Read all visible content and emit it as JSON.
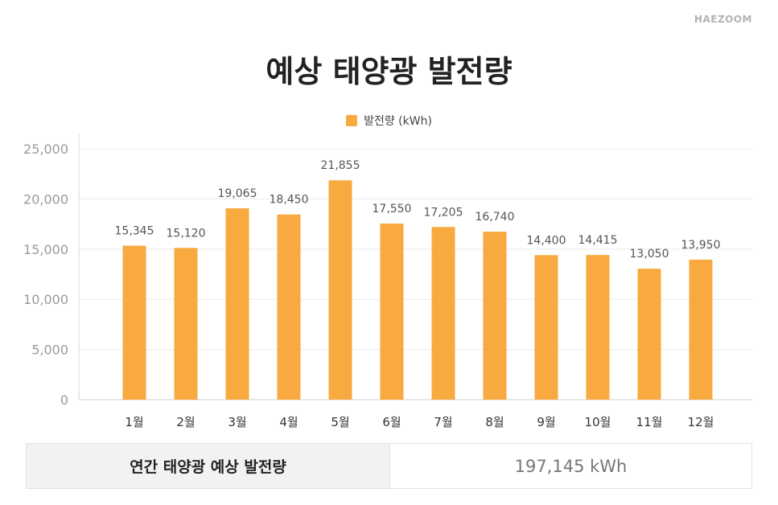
{
  "brand": "HAEZOOM",
  "chart_data": {
    "type": "bar",
    "title": "예상 태양광 발전량",
    "categories": [
      "1월",
      "2월",
      "3월",
      "4월",
      "5월",
      "6월",
      "7월",
      "8월",
      "9월",
      "10월",
      "11월",
      "12월"
    ],
    "series": [
      {
        "name": "발전량 (kWh)",
        "values": [
          15345,
          15120,
          19065,
          18450,
          21855,
          17550,
          17205,
          16740,
          14400,
          14415,
          13050,
          13950
        ],
        "value_labels": [
          "15,345",
          "15,120",
          "19,065",
          "18,450",
          "21,855",
          "17,550",
          "17,205",
          "16,740",
          "14,400",
          "14,415",
          "13,050",
          "13,950"
        ],
        "color": "#f8a93f"
      }
    ],
    "ylim": [
      0,
      25000
    ],
    "yticks": [
      0,
      5000,
      10000,
      15000,
      20000,
      25000
    ],
    "ytick_labels": [
      "0",
      "5,000",
      "10,000",
      "15,000",
      "20,000",
      "25,000"
    ],
    "xlabel": "",
    "ylabel": "",
    "grid": true,
    "legend_position": "top-center"
  },
  "summary": {
    "label": "연간 태양광 예상 발전량",
    "value": "197,145 kWh"
  }
}
